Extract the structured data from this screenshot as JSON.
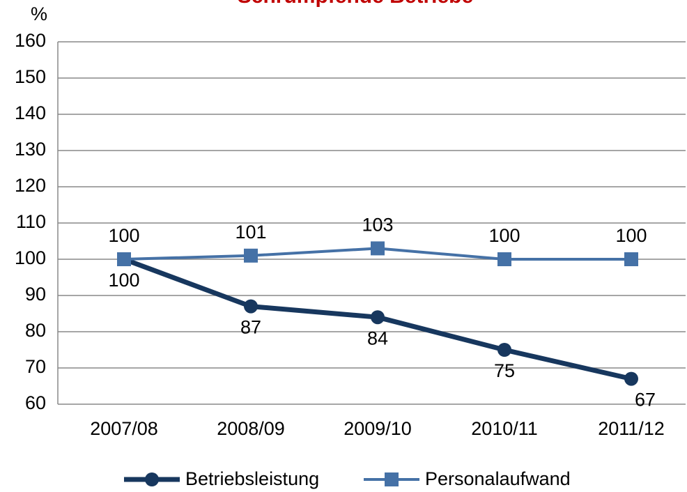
{
  "chart_data": {
    "type": "line",
    "title": "Schrumpfende Betriebe",
    "y_label": "%",
    "categories": [
      "2007/08",
      "2008/09",
      "2009/10",
      "2010/11",
      "2011/12"
    ],
    "series": [
      {
        "name": "Betriebsleistung",
        "color": "#17375e",
        "values": [
          100,
          87,
          84,
          75,
          67
        ],
        "marker": "circle"
      },
      {
        "name": "Personalaufwand",
        "color": "#4571a6",
        "values": [
          100,
          101,
          103,
          100,
          100
        ],
        "marker": "square"
      }
    ],
    "ylim": [
      60,
      160
    ],
    "yticks": [
      60,
      70,
      80,
      90,
      100,
      110,
      120,
      130,
      140,
      150,
      160
    ],
    "grid": true,
    "legend": "bottom"
  }
}
